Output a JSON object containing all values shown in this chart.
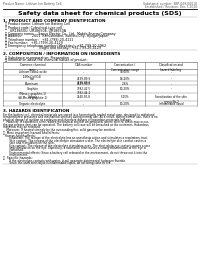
{
  "title": "Safety data sheet for chemical products (SDS)",
  "header_left": "Product Name: Lithium Ion Battery Cell",
  "header_right_line1": "Substance number: SBP-049-00010",
  "header_right_line2": "Established / Revision: Dec.7,2010",
  "section1_title": "1. PRODUCT AND COMPANY IDENTIFICATION",
  "section1_lines": [
    "  ・ Product name: Lithium Ion Battery Cell",
    "  ・ Product code: Cylindrical-type cell",
    "       UR18650U, UR18650E, UR18650A",
    "  ・ Company name:    Sanyo Electric Co., Ltd.  Mobile Energy Company",
    "  ・ Address:          2001  Kamishinden, Sumoto-City, Hyogo, Japan",
    "  ・ Telephone number:   +81-(799)-20-4111",
    "  ・ Fax number:   +81-(799)-26-4129",
    "  ・ Emergency telephone number (Weekday): +81-799-20-3962",
    "                                    (Night and holiday): +81-799-26-4129"
  ],
  "section2_title": "2. COMPOSITION / INFORMATION ON INGREDIENTS",
  "section2_lines": [
    "  ・ Substance or preparation: Preparation",
    "  ・ Information about the chemical nature of product:"
  ],
  "table_headers": [
    "Common chemical name",
    "CAS number",
    "Concentration /\nConcentration range",
    "Classification and\nhazard labeling"
  ],
  "table_col1": [
    "Lithium cobalt oxide\n(LiMn-Co)(O4)",
    "Iron",
    "Aluminum",
    "Graphite\n(Meso-c graphite-1)\n(AI-Mn-co graphite-1)",
    "Copper",
    "Organic electrolyte"
  ],
  "table_col2": [
    "-",
    "7439-89-6\n7439-89-6",
    "7429-90-5",
    "7782-42-5\n7782-44-2",
    "7440-50-8",
    "-"
  ],
  "table_col3": [
    "30-60%",
    "16-20%",
    "2-6%",
    "10-20%",
    "5-15%",
    "10-20%"
  ],
  "table_col4": [
    "-",
    "-",
    "-",
    "-",
    "Sensitization of the skin\ngroup No.2",
    "Inflammable liquid"
  ],
  "section3_title": "3. HAZARDS IDENTIFICATION",
  "section3_para1": "For the battery cell, chemical materials are stored in a hermetically sealed metal case, designed to withstand\ntemperatures, pressures and mechanical stresses during normal use. As a result, during normal use, there is no\nphysical danger of ignition or explosion and therefore danger of hazardous materials leakage.\n    However, if exposed to a fire, added mechanical shocks, decomposed, where electric shock may occur,\nthe gas release vent can be operated. The battery cell case will be breached at the extremes. Hazardous\nmaterials may be released.\n    Moreover, if heated strongly by the surrounding fire, solid gas may be emitted.",
  "section3_bullet1": "・  Most important hazard and effects:",
  "section3_sub1": "Human health effects:\n     Inhalation: The release of the electrolyte has an anesthesia action and stimulates a respiratory tract.\n     Skin contact: The release of the electrolyte stimulates a skin. The electrolyte skin contact causes a\n     sore and stimulation on the skin.\n     Eye contact: The release of the electrolyte stimulates eyes. The electrolyte eye contact causes a sore\n     and stimulation on the eye. Especially, a substance that causes a strong inflammation of the eye is\n     contained.\n     Environmental effects: Since a battery cell released in the environment, do not throw out it into the\n     environment.",
  "section3_bullet2": "・  Specific hazards:",
  "section3_sub2": "     If the electrolyte contacts with water, it will generate detrimental hydrogen fluoride.\n     Since the used electrolyte is inflammable liquid, do not bring close to fire.",
  "bg_color": "#ffffff",
  "text_color": "#000000",
  "table_border_color": "#888888"
}
